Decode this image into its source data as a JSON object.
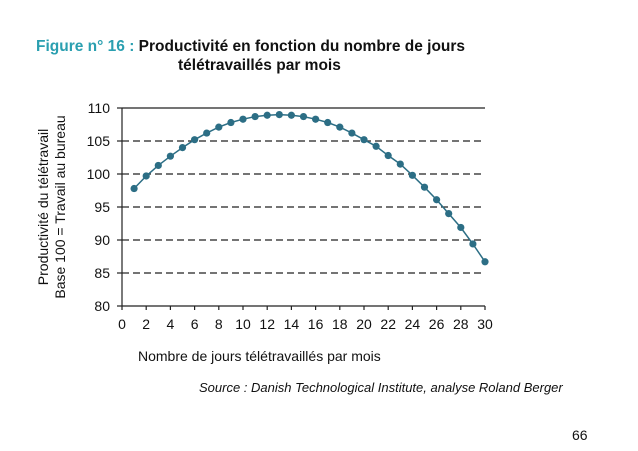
{
  "figure": {
    "title_prefix": "Figure n° 16 :",
    "title_line1": "Productivité en fonction du nombre de jours",
    "title_line2": "télétravaillés par mois"
  },
  "chart_data": {
    "type": "line",
    "title": "Productivité en fonction du nombre de jours télétravaillés par mois",
    "xlabel": "Nombre de jours télétravaillés par mois",
    "ylabel_lines": [
      "Productivité du télétravail",
      "Base 100 = Travail au bureau"
    ],
    "xlim": [
      0,
      30
    ],
    "ylim": [
      80,
      110
    ],
    "x_ticks": [
      0,
      2,
      4,
      6,
      8,
      10,
      12,
      14,
      16,
      18,
      20,
      22,
      24,
      26,
      28,
      30
    ],
    "y_ticks": [
      80,
      85,
      90,
      95,
      100,
      105,
      110
    ],
    "dashed_gridlines": [
      85,
      90,
      95,
      100,
      105
    ],
    "series_color": "#2c6e85",
    "series": [
      {
        "x": [
          1,
          2,
          3,
          4,
          5,
          6,
          7,
          8,
          9,
          10,
          11,
          12,
          13,
          14,
          15,
          16,
          17,
          18,
          19,
          20,
          21,
          22,
          23,
          24,
          25,
          26,
          27,
          28,
          29,
          30
        ],
        "values": [
          97.8,
          99.7,
          101.3,
          102.7,
          104.0,
          105.2,
          106.2,
          107.1,
          107.8,
          108.3,
          108.7,
          108.9,
          109.0,
          108.9,
          108.7,
          108.3,
          107.8,
          107.1,
          106.2,
          105.2,
          104.2,
          102.8,
          101.5,
          99.8,
          98.0,
          96.1,
          94.0,
          91.9,
          89.4,
          86.7
        ]
      }
    ]
  },
  "source": "Source : Danish Technological Institute, analyse Roland Berger",
  "page_number": "66"
}
